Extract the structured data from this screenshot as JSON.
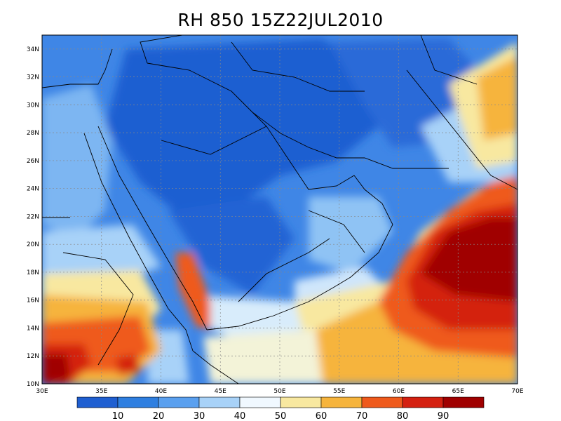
{
  "title": "RH 850  15Z22JUL2010",
  "map": {
    "x_ticks": [
      "30E",
      "35E",
      "40E",
      "45E",
      "50E",
      "55E",
      "60E",
      "65E",
      "70E"
    ],
    "y_ticks": [
      "34N",
      "32N",
      "30N",
      "28N",
      "26N",
      "24N",
      "22N",
      "20N",
      "18N",
      "16N",
      "14N",
      "12N",
      "10N"
    ],
    "lon_range": [
      30,
      70
    ],
    "lat_range": [
      10,
      35
    ],
    "grid": "dotted"
  },
  "colorbar": {
    "labels": [
      "10",
      "20",
      "30",
      "40",
      "50",
      "60",
      "70",
      "80",
      "90"
    ],
    "colors": [
      "#1f5fd1",
      "#2f7fe0",
      "#5aa0ef",
      "#a8d2f8",
      "#f0f8ff",
      "#f8e8a0",
      "#f6b43c",
      "#ef5a1c",
      "#d42010",
      "#a00000"
    ]
  }
}
